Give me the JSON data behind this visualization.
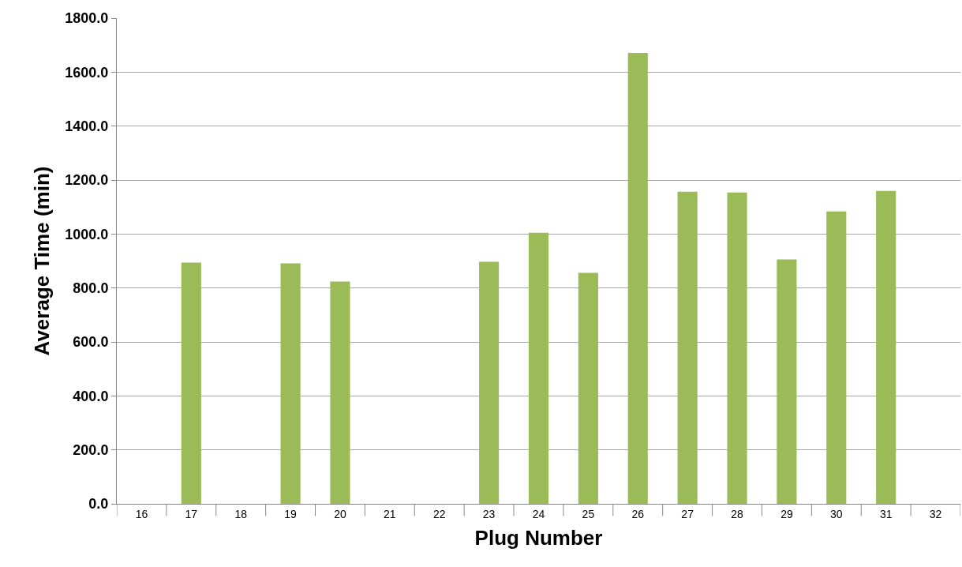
{
  "chart_data": {
    "type": "bar",
    "xlabel": "Plug Number",
    "ylabel": "Average Time (min)",
    "categories": [
      "16",
      "17",
      "18",
      "19",
      "20",
      "21",
      "22",
      "23",
      "24",
      "25",
      "26",
      "27",
      "28",
      "29",
      "30",
      "31",
      "32"
    ],
    "values": [
      null,
      894,
      null,
      891,
      824,
      null,
      null,
      897,
      1005,
      856,
      1671,
      1157,
      1154,
      906,
      1084,
      1160,
      null
    ],
    "color": "#9bbb59",
    "ylim": [
      0,
      1800
    ],
    "yticks": [
      {
        "value": 0,
        "label": "0.0"
      },
      {
        "value": 200,
        "label": "200.0"
      },
      {
        "value": 400,
        "label": "400.0"
      },
      {
        "value": 600,
        "label": "600.0"
      },
      {
        "value": 800,
        "label": "800.0"
      },
      {
        "value": 1000,
        "label": "1000.0"
      },
      {
        "value": 1200,
        "label": "1200.0"
      },
      {
        "value": 1400,
        "label": "1400.0"
      },
      {
        "value": 1600,
        "label": "1600.0"
      },
      {
        "value": 1800,
        "label": "1800.0"
      }
    ],
    "grid": "y"
  }
}
